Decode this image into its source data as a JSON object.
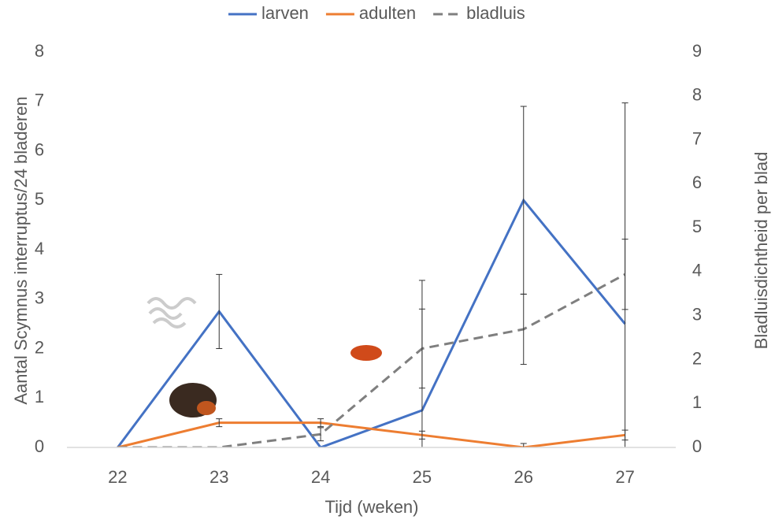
{
  "chart_data": {
    "type": "line",
    "legend_position": "top",
    "categories": [
      "22",
      "23",
      "24",
      "25",
      "26",
      "27"
    ],
    "x_label": "Tijd (weken)",
    "y_label": "Aantal Scymnus interruptus/24 bladeren",
    "y2_label": "Bladluisdichtheid per blad",
    "ylim": [
      0,
      8
    ],
    "yticks": [
      0,
      1,
      2,
      3,
      4,
      5,
      6,
      7,
      8
    ],
    "y2lim": [
      0,
      9
    ],
    "y2ticks": [
      0,
      1,
      2,
      3,
      4,
      5,
      6,
      7,
      8,
      9
    ],
    "series": [
      {
        "name": "larven",
        "color": "#4472c4",
        "dash": false,
        "values": [
          0,
          2.75,
          0,
          0.75,
          5.0,
          2.5
        ],
        "errors": [
          0,
          0.75,
          0,
          2.63,
          1.9,
          4.47
        ]
      },
      {
        "name": "adulten",
        "color": "#ed7d31",
        "dash": false,
        "values": [
          0,
          0.5,
          0.5,
          0.25,
          0,
          0.25
        ],
        "errors": [
          0,
          0.08,
          0.08,
          0.08,
          0.08,
          0.1
        ]
      },
      {
        "name": "bladluis",
        "color": "#7f7f7f",
        "dash": true,
        "axis": "y2",
        "values": [
          0,
          0,
          0.3,
          2.25,
          2.69,
          3.94
        ],
        "errors": [
          0,
          0,
          0.15,
          0.9,
          0.8,
          0.8
        ]
      }
    ]
  }
}
